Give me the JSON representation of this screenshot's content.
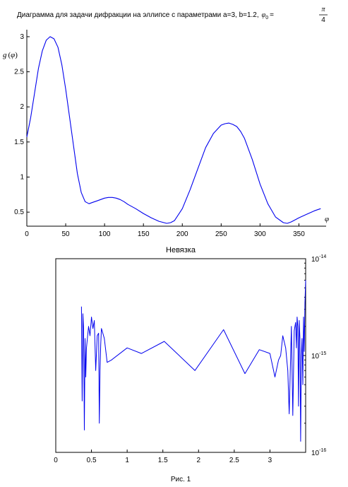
{
  "figure": {
    "caption": "Рис. 1"
  },
  "chart_data": [
    {
      "type": "line",
      "title_text": "Диаграмма для задачи дифракции на эллипсе с параметрами a=3, b=1.2,",
      "title_phi": "φ",
      "title_phi_sub": "0",
      "title_eq": "=",
      "title_frac_num": "π",
      "title_frac_den": "4",
      "ylabel_fn": "g",
      "ylabel_arg": "φ",
      "xlabel_symbol": "φ",
      "xlim": [
        0,
        385
      ],
      "ylim": [
        0.3,
        3.1
      ],
      "x_ticks": [
        0,
        50,
        100,
        150,
        200,
        250,
        300,
        350
      ],
      "x_tick_labels": [
        "0",
        "50",
        "100",
        "150",
        "200",
        "250",
        "300",
        "350"
      ],
      "y_ticks": [
        0.5,
        1,
        1.5,
        2,
        2.5,
        3
      ],
      "y_tick_labels": [
        "0.5",
        "1",
        "1.5",
        "2",
        "2.5",
        "3"
      ],
      "grid": false,
      "series": [
        {
          "color": "#0000ee",
          "x": [
            0,
            5,
            10,
            15,
            20,
            25,
            30,
            35,
            40,
            45,
            50,
            55,
            60,
            65,
            70,
            75,
            80,
            85,
            90,
            95,
            100,
            105,
            110,
            115,
            120,
            125,
            130,
            140,
            150,
            160,
            170,
            180,
            185,
            190,
            200,
            210,
            220,
            230,
            240,
            250,
            255,
            260,
            265,
            270,
            275,
            280,
            290,
            300,
            310,
            320,
            330,
            335,
            340,
            345,
            350,
            360,
            370,
            378
          ],
          "y": [
            1.57,
            1.85,
            2.2,
            2.55,
            2.8,
            2.95,
            3.0,
            2.97,
            2.85,
            2.6,
            2.25,
            1.85,
            1.45,
            1.05,
            0.78,
            0.65,
            0.62,
            0.64,
            0.66,
            0.68,
            0.7,
            0.71,
            0.71,
            0.7,
            0.68,
            0.65,
            0.61,
            0.55,
            0.48,
            0.42,
            0.37,
            0.34,
            0.35,
            0.38,
            0.55,
            0.82,
            1.12,
            1.42,
            1.62,
            1.74,
            1.76,
            1.77,
            1.75,
            1.72,
            1.65,
            1.55,
            1.25,
            0.9,
            0.62,
            0.43,
            0.35,
            0.34,
            0.36,
            0.39,
            0.42,
            0.47,
            0.52,
            0.55
          ]
        }
      ]
    },
    {
      "type": "line",
      "title": "Невязка",
      "y_scale": "log",
      "xlim": [
        0,
        3.5
      ],
      "ylim": [
        1e-16,
        1e-14
      ],
      "x_ticks": [
        0,
        0.5,
        1,
        1.5,
        2,
        2.5,
        3
      ],
      "x_tick_labels": [
        "0",
        "0.5",
        "1",
        "1.5",
        "2",
        "2.5",
        "3"
      ],
      "y_ticks": [
        1e-16,
        1e-15,
        1e-14
      ],
      "y_tick_base": "10",
      "y_tick_exps": [
        "-16",
        "-15",
        "-14"
      ],
      "grid": false,
      "series": [
        {
          "color": "#0000ee",
          "x": [
            0.36,
            0.37,
            0.38,
            0.39,
            0.4,
            0.41,
            0.42,
            0.43,
            0.45,
            0.46,
            0.48,
            0.5,
            0.52,
            0.54,
            0.56,
            0.58,
            0.6,
            0.61,
            0.62,
            0.63,
            0.64,
            0.65,
            0.68,
            0.72,
            0.78,
            1.0,
            1.2,
            1.52,
            1.95,
            2.35,
            2.65,
            2.85,
            3.0,
            3.07,
            3.12,
            3.15,
            3.18,
            3.22,
            3.25,
            3.27,
            3.3,
            3.32,
            3.34,
            3.36,
            3.37,
            3.38,
            3.39,
            3.4,
            3.41,
            3.42,
            3.43,
            3.44,
            3.45,
            3.46,
            3.47,
            3.48,
            3.49,
            3.5
          ],
          "y": [
            3.2e-15,
            3.4e-16,
            2.7e-15,
            1.9e-15,
            1.7e-16,
            1.5e-15,
            6e-16,
            1.2e-15,
            1.7e-15,
            2e-15,
            1.6e-15,
            2.5e-15,
            1.9e-15,
            2.3e-15,
            7e-16,
            1.6e-15,
            1.7e-15,
            2e-16,
            7e-16,
            1.3e-15,
            1.9e-15,
            1.8e-15,
            1.5e-15,
            8.5e-16,
            9e-16,
            1.2e-15,
            1.05e-15,
            1.4e-15,
            7e-16,
            1.85e-15,
            6.5e-16,
            1.15e-15,
            1.05e-15,
            6e-16,
            9e-16,
            1e-15,
            1.6e-15,
            1.2e-15,
            7e-16,
            2.5e-16,
            2e-15,
            2.4e-16,
            1.8e-15,
            2.2e-15,
            1.2e-15,
            2.5e-15,
            2e-15,
            3e-16,
            2.3e-15,
            1.5e-15,
            1.3e-16,
            1e-15,
            1.5e-15,
            5e-16,
            2.5e-15,
            1.1e-15,
            3.5e-15,
            6e-15
          ]
        }
      ]
    }
  ]
}
